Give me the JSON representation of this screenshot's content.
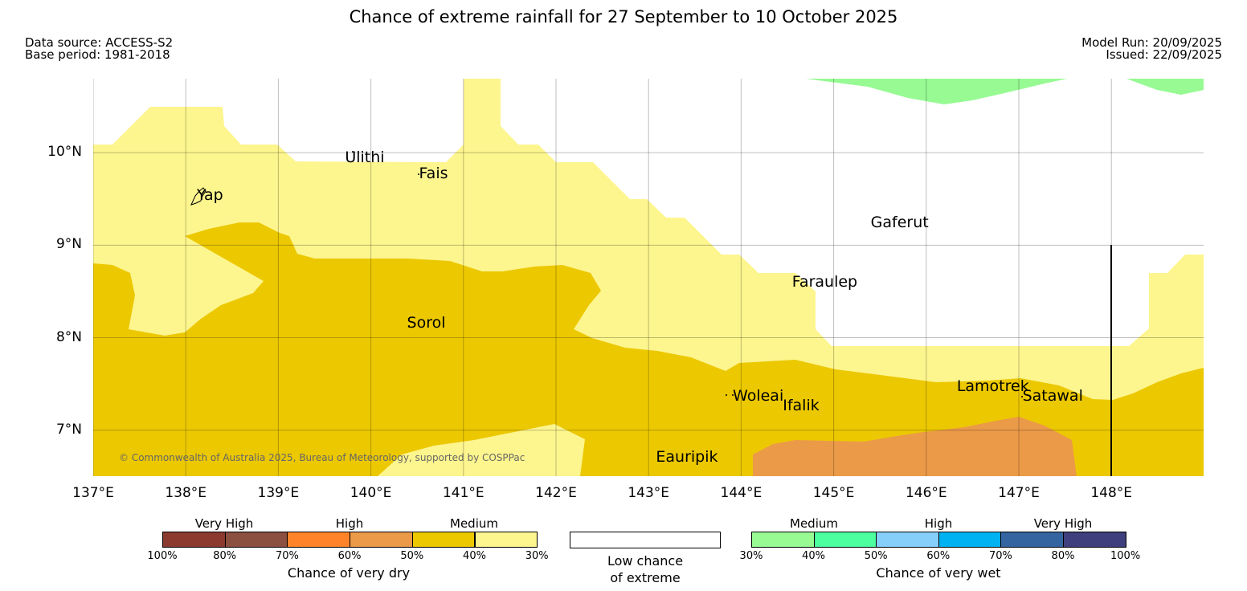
{
  "title": "Chance of extreme rainfall for 27 September to 10 October 2025",
  "data_source": "Data source: ACCESS-S2",
  "base_period": "Base period: 1981-2018",
  "model_run": "Model Run: 20/09/2025",
  "issued": "Issued: 22/09/2025",
  "map": {
    "lon_range": [
      137.0,
      149.0
    ],
    "lat_range": [
      6.5,
      10.8
    ],
    "lat_labels": [
      {
        "value": 10,
        "label": "10°N"
      },
      {
        "value": 9,
        "label": "9°N"
      },
      {
        "value": 8,
        "label": "8°N"
      },
      {
        "value": 7,
        "label": "7°N"
      }
    ],
    "lon_labels": [
      {
        "value": 137,
        "label": "137°E"
      },
      {
        "value": 138,
        "label": "138°E"
      },
      {
        "value": 139,
        "label": "139°E"
      },
      {
        "value": 140,
        "label": "140°E"
      },
      {
        "value": 141,
        "label": "141°E"
      },
      {
        "value": 142,
        "label": "142°E"
      },
      {
        "value": 143,
        "label": "143°E"
      },
      {
        "value": 144,
        "label": "144°E"
      },
      {
        "value": 145,
        "label": "145°E"
      },
      {
        "value": 146,
        "label": "146°E"
      },
      {
        "value": 147,
        "label": "147°E"
      },
      {
        "value": 148,
        "label": "148°E"
      }
    ],
    "places": [
      {
        "name": "Yap",
        "lon": 138.12,
        "lat": 9.52
      },
      {
        "name": "Ulithi",
        "lon": 139.72,
        "lat": 9.93
      },
      {
        "name": "Fais",
        "lon": 140.52,
        "lat": 9.76
      },
      {
        "name": "Gaferut",
        "lon": 145.4,
        "lat": 9.23
      },
      {
        "name": "Faraulep",
        "lon": 144.55,
        "lat": 8.59
      },
      {
        "name": "Sorol",
        "lon": 140.39,
        "lat": 8.14
      },
      {
        "name": "Woleai",
        "lon": 143.91,
        "lat": 7.35
      },
      {
        "name": "Ifalik",
        "lon": 144.45,
        "lat": 7.25
      },
      {
        "name": "Lamotrek",
        "lon": 146.33,
        "lat": 7.46
      },
      {
        "name": "Satawal",
        "lon": 147.04,
        "lat": 7.35
      },
      {
        "name": "Eauripik",
        "lon": 143.08,
        "lat": 6.69
      }
    ],
    "regions": [
      {
        "category": "Medium (30-40%) chance of very dry",
        "color": "#FDF58E"
      },
      {
        "category": "Medium (40-50%) chance of very dry",
        "color": "#ECC800"
      },
      {
        "category": "High (50-60%) chance of very dry",
        "color": "#EB9A48"
      },
      {
        "category": "Medium (30-40%) chance of very wet",
        "color": "#97FA93"
      }
    ],
    "copyright": "© Commonwealth of Australia 2025, Bureau of Meteorology, supported by COSPPac"
  },
  "legend": {
    "dry": {
      "categories": [
        "Very High",
        "High",
        "Medium"
      ],
      "colors": [
        "#8C3A2F",
        "#8C5040",
        "#FF8429",
        "#EB9A48",
        "#ECC800",
        "#FDF58E"
      ],
      "ticks": [
        "100%",
        "80%",
        "70%",
        "60%",
        "50%",
        "40%",
        "30%"
      ],
      "title": "Chance of very dry"
    },
    "low": {
      "line1": "Low chance",
      "line2": "of extreme"
    },
    "wet": {
      "categories": [
        "Medium",
        "High",
        "Very High"
      ],
      "colors": [
        "#97FA93",
        "#4DFF9E",
        "#86CFFA",
        "#00B2F1",
        "#3565A1",
        "#3F3F7D"
      ],
      "ticks": [
        "30%",
        "40%",
        "50%",
        "60%",
        "70%",
        "80%",
        "100%"
      ],
      "title": "Chance of very wet"
    }
  }
}
